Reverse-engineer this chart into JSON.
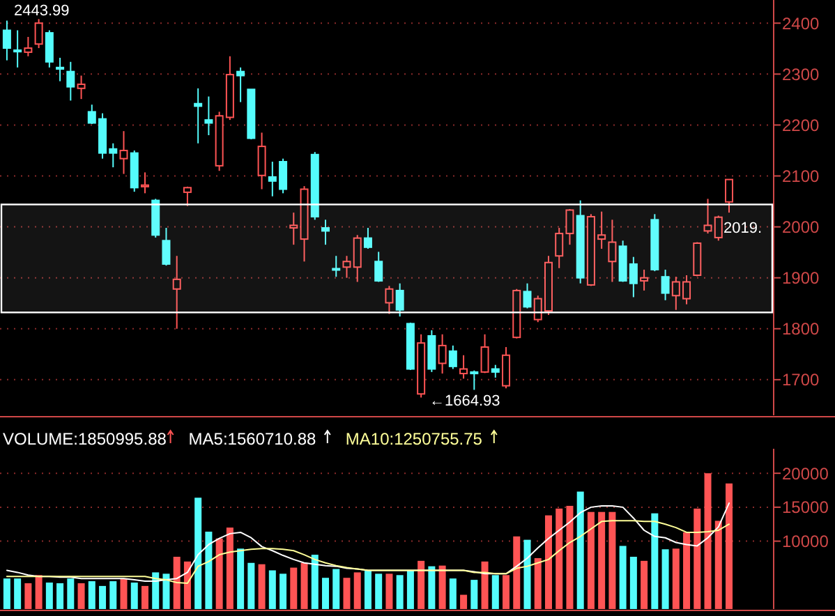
{
  "chart_data": [
    {
      "type": "candlestick",
      "categories": [
        null,
        null,
        null,
        null,
        null,
        null,
        null,
        null,
        null,
        null,
        null,
        null,
        null,
        null,
        null,
        null,
        null,
        null,
        null,
        null,
        null,
        null,
        null,
        null,
        null,
        null,
        null,
        null,
        null,
        null,
        null,
        null,
        null,
        null,
        null,
        null,
        null,
        null,
        null,
        null,
        null,
        null,
        null,
        null,
        null,
        null,
        null,
        null,
        null,
        null,
        null,
        null,
        null,
        null,
        null,
        null,
        null,
        null,
        null,
        null,
        null,
        null,
        null,
        null,
        null,
        null,
        null,
        null,
        null
      ],
      "ohlc": [
        [
          2386,
          2405,
          2327,
          2351
        ],
        [
          2347,
          2386,
          2313,
          2344
        ],
        [
          2343,
          2373,
          2335,
          2351
        ],
        [
          2359,
          2408,
          2351,
          2400
        ],
        [
          2381,
          2386,
          2313,
          2324
        ],
        [
          2313,
          2332,
          2286,
          2310
        ],
        [
          2305,
          2324,
          2248,
          2275
        ],
        [
          2272,
          2297,
          2251,
          2280
        ],
        [
          2226,
          2240,
          2202,
          2204
        ],
        [
          2212,
          2223,
          2134,
          2145
        ],
        [
          2153,
          2164,
          2117,
          2145
        ],
        [
          2134,
          2188,
          2104,
          2150
        ],
        [
          2145,
          2150,
          2069,
          2077
        ],
        [
          2079,
          2107,
          2066,
          2082
        ],
        [
          2052,
          2055,
          1979,
          1984
        ],
        [
          1973,
          1998,
          1924,
          1927
        ],
        [
          1878,
          1943,
          1800,
          1897
        ],
        [
          2068,
          2079,
          2041,
          2077
        ],
        [
          2242,
          2272,
          2164,
          2237
        ],
        [
          2210,
          2256,
          2180,
          2204
        ],
        [
          2120,
          2226,
          2110,
          2218
        ],
        [
          2215,
          2335,
          2210,
          2299
        ],
        [
          2305,
          2313,
          2245,
          2297
        ],
        [
          2270,
          2270,
          2172,
          2174
        ],
        [
          2101,
          2185,
          2074,
          2158
        ],
        [
          2098,
          2128,
          2060,
          2090
        ],
        [
          2128,
          2134,
          2066,
          2074
        ],
        [
          1998,
          2028,
          1965,
          2003
        ],
        [
          1976,
          2080,
          1932,
          2074
        ],
        [
          2142,
          2147,
          2014,
          2020
        ],
        [
          1998,
          2014,
          1965,
          1992
        ],
        [
          1918,
          1943,
          1902,
          1916
        ],
        [
          1921,
          1943,
          1900,
          1932
        ],
        [
          1921,
          1984,
          1892,
          1978
        ],
        [
          1978,
          1998,
          1957,
          1960
        ],
        [
          1932,
          1951,
          1892,
          1894
        ],
        [
          1851,
          1884,
          1829,
          1878
        ],
        [
          1875,
          1889,
          1824,
          1837
        ],
        [
          1810,
          1812,
          1719,
          1721
        ],
        [
          1672,
          1789,
          1664.93,
          1772
        ],
        [
          1786,
          1797,
          1715,
          1721
        ],
        [
          1732,
          1789,
          1712,
          1767
        ],
        [
          1756,
          1767,
          1721,
          1726
        ],
        [
          1712,
          1748,
          1702,
          1721
        ],
        [
          1715,
          1718,
          1680,
          1712
        ],
        [
          1715,
          1789,
          1713,
          1764
        ],
        [
          1721,
          1729,
          1704,
          1715
        ],
        [
          1688,
          1764,
          1683,
          1748
        ],
        [
          1783,
          1878,
          1781,
          1875
        ],
        [
          1873,
          1889,
          1840,
          1843
        ],
        [
          1818,
          1865,
          1813,
          1859
        ],
        [
          1835,
          1943,
          1827,
          1930
        ],
        [
          1943,
          1998,
          1919,
          1987
        ],
        [
          1987,
          2035,
          1965,
          2033
        ],
        [
          2022,
          2052,
          1889,
          1900
        ],
        [
          1886,
          2025,
          1884,
          2020
        ],
        [
          1976,
          2030,
          1957,
          1984
        ],
        [
          1932,
          2014,
          1892,
          1970
        ],
        [
          1962,
          1973,
          1892,
          1894
        ],
        [
          1927,
          1941,
          1862,
          1889
        ],
        [
          1894,
          1916,
          1875,
          1900
        ],
        [
          2014,
          2025,
          1913,
          1916
        ],
        [
          1902,
          1916,
          1856,
          1870
        ],
        [
          1865,
          1902,
          1837,
          1892
        ],
        [
          1859,
          1905,
          1848,
          1892
        ],
        [
          1905,
          1970,
          1903,
          1968
        ],
        [
          1992,
          2055,
          1987,
          2003
        ],
        [
          1979,
          2022,
          1973,
          2019
        ],
        [
          2049,
          2093,
          2028,
          2093
        ]
      ],
      "ylim": [
        1630,
        2440
      ],
      "yticks": [
        1700,
        1800,
        1900,
        2000,
        2100,
        2200,
        2300,
        2400
      ],
      "grid": "y",
      "bands": [
        {
          "axis": "y",
          "from": 1832,
          "to": 2044,
          "color": "#ffffff"
        }
      ],
      "annotations": [
        "2443.99",
        "←1664.93",
        "2019."
      ]
    },
    {
      "type": "bar",
      "categories": [
        null,
        null,
        null,
        null,
        null,
        null,
        null,
        null,
        null,
        null,
        null,
        null,
        null,
        null,
        null,
        null,
        null,
        null,
        null,
        null,
        null,
        null,
        null,
        null,
        null,
        null,
        null,
        null,
        null,
        null,
        null,
        null,
        null,
        null,
        null,
        null,
        null,
        null,
        null,
        null,
        null,
        null,
        null,
        null,
        null,
        null,
        null,
        null,
        null,
        null,
        null,
        null,
        null,
        null,
        null,
        null,
        null,
        null,
        null,
        null,
        null,
        null,
        null,
        null,
        null,
        null,
        null,
        null,
        null
      ],
      "ylim": [
        0,
        23200
      ],
      "yticks": [
        10000,
        15000,
        20000
      ],
      "grid": "y",
      "legend": "top left",
      "series": [
        {
          "type": "bar",
          "name": "VOLUME:1850995.88",
          "values": [
            4500,
            4500,
            3800,
            5000,
            3900,
            3800,
            4500,
            3800,
            4100,
            3400,
            4100,
            4500,
            3900,
            3400,
            5400,
            5200,
            7700,
            7000,
            16400,
            11400,
            10400,
            12000,
            8900,
            6800,
            6600,
            5700,
            5200,
            6100,
            6800,
            8000,
            4600,
            5900,
            4600,
            5400,
            5700,
            5200,
            5200,
            5000,
            5700,
            7100,
            6300,
            6400,
            4500,
            2100,
            4300,
            7000,
            5000,
            5000,
            10700,
            10200,
            7500,
            13800,
            14800,
            15200,
            17300,
            14300,
            14300,
            14300,
            9300,
            7700,
            7100,
            14100,
            8800,
            8900,
            11300,
            14800,
            20000,
            13000,
            18500
          ],
          "colors": [
            "#54fcfc",
            "#54fcfc",
            "#ff5454",
            "#ff5454",
            "#54fcfc",
            "#54fcfc",
            "#54fcfc",
            "#ff5454",
            "#54fcfc",
            "#54fcfc",
            "#54fcfc",
            "#ff5454",
            "#54fcfc",
            "#ff5454",
            "#54fcfc",
            "#54fcfc",
            "#ff5454",
            "#ff5454",
            "#54fcfc",
            "#54fcfc",
            "#ff5454",
            "#ff5454",
            "#54fcfc",
            "#54fcfc",
            "#ff5454",
            "#54fcfc",
            "#54fcfc",
            "#ff5454",
            "#ff5454",
            "#54fcfc",
            "#54fcfc",
            "#54fcfc",
            "#ff5454",
            "#ff5454",
            "#54fcfc",
            "#54fcfc",
            "#ff5454",
            "#54fcfc",
            "#54fcfc",
            "#ff5454",
            "#54fcfc",
            "#ff5454",
            "#54fcfc",
            "#ff5454",
            "#54fcfc",
            "#ff5454",
            "#54fcfc",
            "#ff5454",
            "#ff5454",
            "#54fcfc",
            "#ff5454",
            "#ff5454",
            "#ff5454",
            "#ff5454",
            "#54fcfc",
            "#ff5454",
            "#ff5454",
            "#ff5454",
            "#54fcfc",
            "#54fcfc",
            "#ff5454",
            "#54fcfc",
            "#54fcfc",
            "#ff5454",
            "#ff5454",
            "#ff5454",
            "#ff5454",
            "#ff5454",
            "#ff5454"
          ]
        },
        {
          "type": "line",
          "name": "MA5:1560710.88",
          "color": "#ffffff",
          "values": [
            5700,
            5400,
            5000,
            4800,
            4800,
            4700,
            4700,
            4500,
            4500,
            4500,
            4500,
            4500,
            4300,
            4100,
            4100,
            4300,
            4500,
            5400,
            8000,
            9500,
            10400,
            11100,
            11300,
            10500,
            9200,
            8600,
            7900,
            7300,
            6800,
            6600,
            6400,
            6300,
            6000,
            5900,
            5700,
            5700,
            5700,
            5700,
            5700,
            5700,
            5700,
            5700,
            5700,
            5700,
            5500,
            5200,
            5200,
            5200,
            6300,
            7500,
            9000,
            10400,
            11600,
            12800,
            14200,
            15000,
            15200,
            15200,
            15000,
            13400,
            11600,
            10700,
            10500,
            9800,
            9500,
            9300,
            10500,
            12100,
            15600
          ]
        },
        {
          "type": "line",
          "name": "MA10:1250755.75",
          "color": "#ffff99",
          "values": [
            4800,
            4800,
            4800,
            4800,
            4800,
            4800,
            4800,
            4800,
            4800,
            4800,
            4800,
            4800,
            4800,
            4800,
            4500,
            4300,
            3900,
            3800,
            6300,
            7000,
            8000,
            8400,
            8600,
            8800,
            8900,
            8900,
            8800,
            8600,
            8000,
            7300,
            6800,
            6400,
            6100,
            5900,
            5700,
            5700,
            5700,
            5700,
            5700,
            5700,
            5700,
            5700,
            5700,
            5700,
            5400,
            5400,
            5200,
            5200,
            6000,
            6300,
            6800,
            7300,
            8600,
            9800,
            10700,
            11800,
            12900,
            13000,
            13000,
            13000,
            12900,
            12900,
            12500,
            12000,
            11300,
            11300,
            11400,
            11600,
            12500
          ]
        }
      ]
    }
  ]
}
